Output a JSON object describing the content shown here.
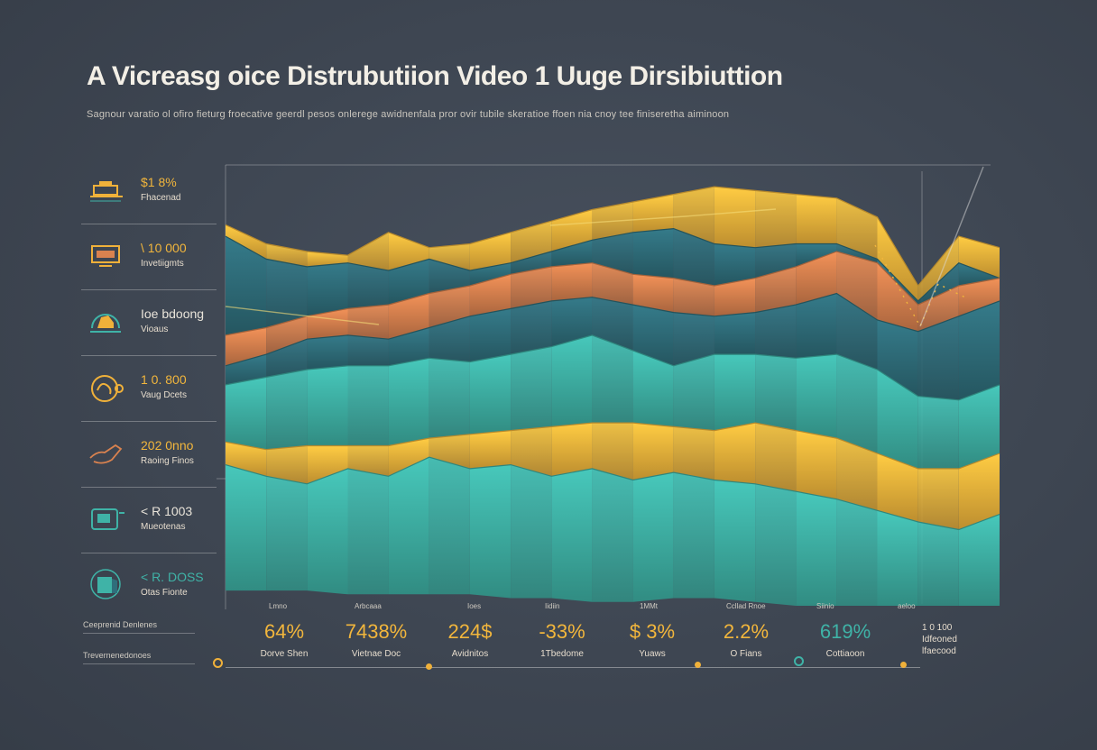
{
  "title": "A Vicreasg oice Distrubutiion Video 1 Uuge Dirsibiuttion",
  "subtitle": "Sagnour varatio ol ofiro fieturg froecative geerdl pesos onlerege awidnenfala pror ovir tubile skeratioe ffoen nia cnoy tee finiseretha aiminoon",
  "colors": {
    "teal": "#3fb3a7",
    "dark_teal": "#2f6e7b",
    "orange": "#d9824f",
    "yellow": "#f2b63c",
    "gold": "#f0b13a",
    "bg": "#3e4652"
  },
  "sidebar": [
    {
      "icon": "bed-icon",
      "value": "$1 8%",
      "label": "Fhacenad"
    },
    {
      "icon": "monitor-icon",
      "value": "\\ 10 000",
      "label": "Invetiigmts"
    },
    {
      "icon": "gauge-icon",
      "value": "Ioe bdoong",
      "label": "Vioaus"
    },
    {
      "icon": "controller-icon",
      "value": "1 0. 800",
      "label": "Vaug Dcets"
    },
    {
      "icon": "hand-icon",
      "value": "202 0nno",
      "label": "Raoing Finos"
    },
    {
      "icon": "device-icon",
      "value": "< R 1003",
      "label": "Mueotenas"
    },
    {
      "icon": "book-icon",
      "value": "< R. DOSS",
      "label": "Otas Fionte"
    }
  ],
  "stats": [
    {
      "value": "64%",
      "label": "Dorve Shen",
      "color": "#f2b63c"
    },
    {
      "value": "7438%",
      "label": "Vietnae Doc",
      "color": "#f2b63c"
    },
    {
      "value": "224$",
      "label": "Avidnitos",
      "color": "#f2b63c"
    },
    {
      "value": "-33%",
      "label": "1Tbedome",
      "color": "#f2b63c"
    },
    {
      "value": "$ 3%",
      "label": "Yuaws",
      "color": "#f2b63c"
    },
    {
      "value": "2.2%",
      "label": "O Fians",
      "color": "#f2b63c"
    },
    {
      "value": "619%",
      "label": "Cottiaoon",
      "color": "#3fb3a7"
    }
  ],
  "right_note": {
    "value": "1 0 100",
    "label1": "Idfeoned",
    "label2": "lfaecood"
  },
  "bottom_left": [
    "Ceeprenid Denlenes",
    "Trevernenedonoes"
  ],
  "chart_data": {
    "type": "area",
    "x": [
      0,
      1,
      2,
      3,
      4,
      5,
      6,
      7,
      8,
      9,
      10,
      11,
      12,
      13,
      14,
      15,
      16,
      17,
      18,
      19
    ],
    "series": [
      {
        "color": "#f2b63c",
        "values": [
          100,
          95,
          93,
          92,
          98,
          94,
          95,
          98,
          101,
          104,
          106,
          108,
          110,
          109,
          108,
          107,
          102,
          84,
          97,
          94
        ]
      },
      {
        "color": "#2f6e7b",
        "values": [
          97,
          91,
          89,
          90,
          88,
          91,
          88,
          90,
          93,
          96,
          98,
          99,
          95,
          94,
          95,
          95,
          91,
          80,
          90,
          86
        ]
      },
      {
        "color": "#d9824f",
        "values": [
          71,
          73,
          76,
          78,
          79,
          82,
          84,
          87,
          89,
          90,
          87,
          86,
          84,
          86,
          89,
          93,
          90,
          79,
          84,
          86
        ]
      },
      {
        "color": "#2f6e7b",
        "values": [
          63,
          66,
          70,
          71,
          70,
          73,
          76,
          78,
          80,
          81,
          79,
          77,
          76,
          77,
          79,
          82,
          75,
          72,
          76,
          80
        ]
      },
      {
        "color": "#3fb3a7",
        "values": [
          58,
          60,
          62,
          63,
          63,
          65,
          64,
          66,
          68,
          71,
          67,
          63,
          66,
          66,
          65,
          66,
          62,
          55,
          54,
          58
        ]
      },
      {
        "color": "#f2b63c",
        "values": [
          43,
          41,
          42,
          42,
          42,
          44,
          45,
          46,
          47,
          48,
          48,
          47,
          46,
          48,
          46,
          44,
          40,
          36,
          36,
          40
        ]
      },
      {
        "color": "#3fb3a7",
        "values": [
          37,
          34,
          32,
          36,
          34,
          39,
          36,
          37,
          34,
          36,
          33,
          35,
          33,
          32,
          30,
          28,
          25,
          22,
          20,
          24
        ]
      }
    ],
    "baseline": [
      4,
      4,
      4,
      3,
      3,
      3,
      3,
      2,
      2,
      1,
      1,
      2,
      2,
      1,
      0,
      0,
      0,
      0,
      0,
      0
    ],
    "ylim": [
      0,
      115
    ],
    "xlabel": "",
    "ylabel": "",
    "x_tick_labels": [
      "Lmno",
      "Arbcaaa",
      "Ioes",
      "Iidiin",
      "1MMt",
      "Ccllad Rnoe",
      "Siinio",
      "aeloo"
    ],
    "grid": true
  }
}
